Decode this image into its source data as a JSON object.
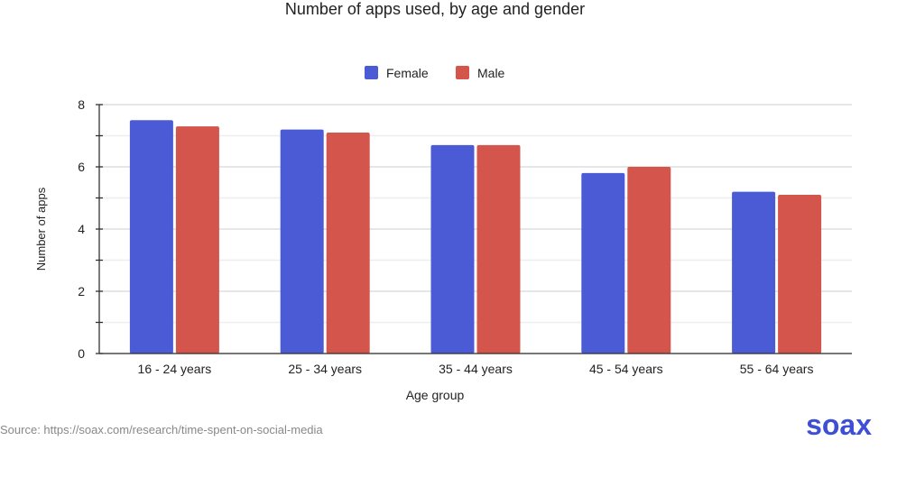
{
  "chart_data": {
    "type": "bar",
    "title": "Number of apps used, by age and gender",
    "xlabel": "Age group",
    "ylabel": "Number of apps",
    "categories": [
      "16 - 24 years",
      "25 - 34 years",
      "35 - 44 years",
      "45 - 54 years",
      "55 - 64 years"
    ],
    "series": [
      {
        "name": "Female",
        "color": "#4b5bd6",
        "values": [
          7.5,
          7.2,
          6.7,
          5.8,
          5.2
        ]
      },
      {
        "name": "Male",
        "color": "#d4554c",
        "values": [
          7.3,
          7.1,
          6.7,
          6.0,
          5.1
        ]
      }
    ],
    "ylim": [
      0,
      8
    ],
    "yticks": [
      0,
      2,
      4,
      6,
      8
    ],
    "grid": true,
    "legend": "top-center"
  },
  "source": "Source: https://soax.com/research/time-spent-on-social-media",
  "logo": "soax"
}
